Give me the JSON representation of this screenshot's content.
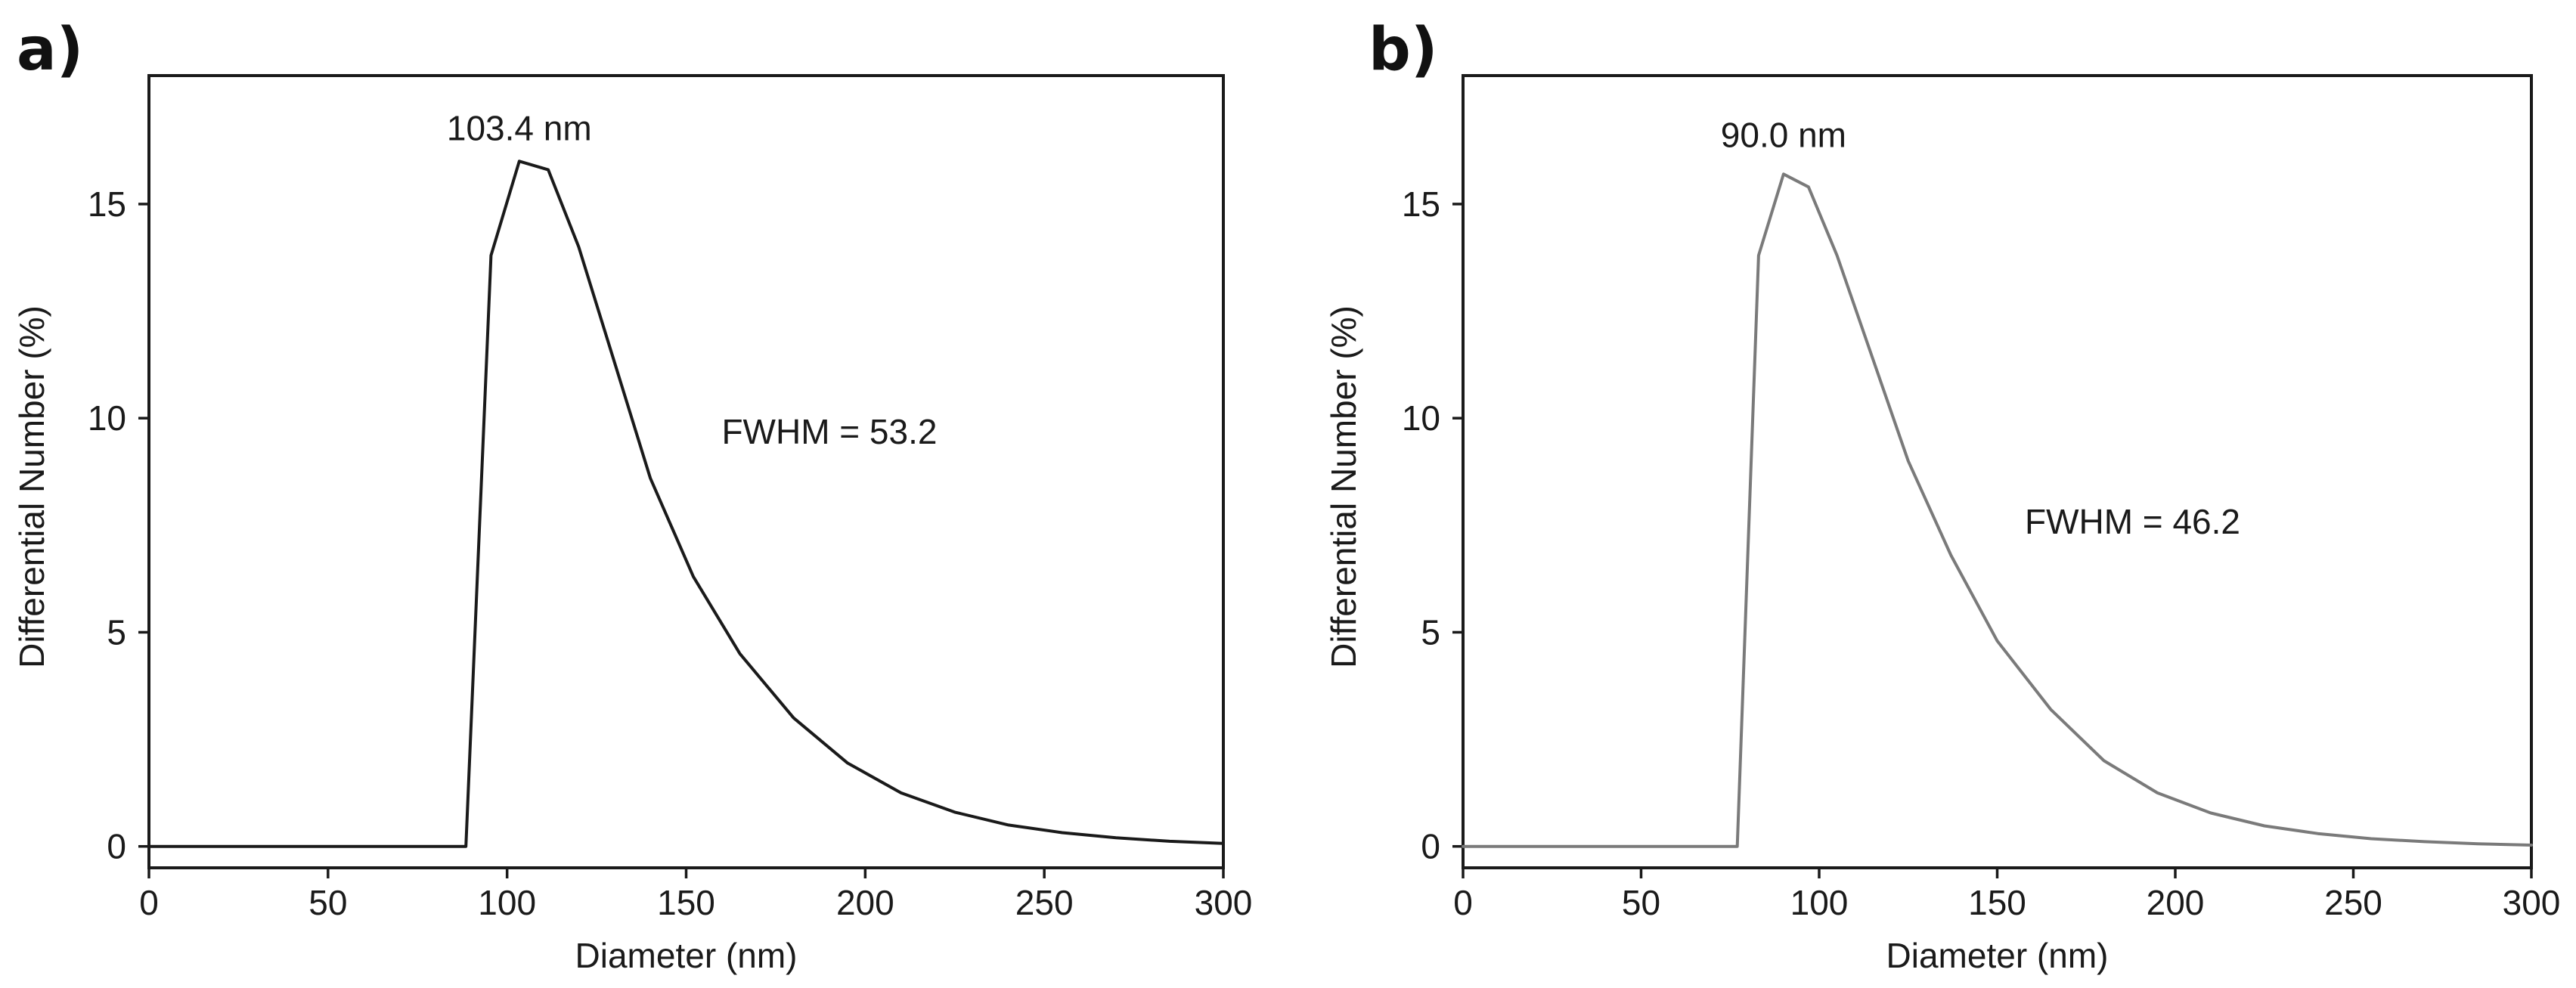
{
  "chart_data": [
    {
      "type": "line",
      "panel_label": "a)",
      "xlabel": "Diameter (nm)",
      "ylabel": "Differential Number (%)",
      "xlim": [
        0,
        300
      ],
      "ylim": [
        -0.5,
        18
      ],
      "xticks": [
        0,
        50,
        100,
        150,
        200,
        250,
        300
      ],
      "yticks": [
        0,
        5,
        10,
        15
      ],
      "grid": false,
      "line_color": "#1a1a1a",
      "series": [
        {
          "x": [
            0,
            88.5,
            95.5,
            103.4,
            111.5,
            120,
            130,
            140,
            152,
            165,
            180,
            195,
            210,
            225,
            240,
            255,
            270,
            285,
            300
          ],
          "values": [
            0,
            0,
            13.8,
            16.0,
            15.8,
            14.0,
            11.3,
            8.6,
            6.3,
            4.5,
            3.0,
            1.95,
            1.25,
            0.8,
            0.5,
            0.32,
            0.2,
            0.12,
            0.07
          ]
        }
      ],
      "annotations": [
        {
          "text": "103.4 nm",
          "x": 103.4,
          "y": 16.0
        },
        {
          "text": "FWHM = 53.2",
          "x": 190,
          "y": 9.4
        }
      ]
    },
    {
      "type": "line",
      "panel_label": "b)",
      "xlabel": "Diameter (nm)",
      "ylabel": "Differential Number (%)",
      "xlim": [
        0,
        300
      ],
      "ylim": [
        -0.5,
        18
      ],
      "xticks": [
        0,
        50,
        100,
        150,
        200,
        250,
        300
      ],
      "yticks": [
        0,
        5,
        10,
        15
      ],
      "grid": false,
      "line_color": "#7a7a7a",
      "series": [
        {
          "x": [
            0,
            77,
            83,
            90.0,
            97,
            105,
            115,
            125,
            137,
            150,
            165,
            180,
            195,
            210,
            225,
            240,
            255,
            270,
            285,
            300
          ],
          "values": [
            0,
            0,
            13.8,
            15.7,
            15.4,
            13.8,
            11.4,
            9.0,
            6.8,
            4.8,
            3.2,
            2.0,
            1.25,
            0.78,
            0.48,
            0.3,
            0.18,
            0.11,
            0.06,
            0.03
          ]
        }
      ],
      "annotations": [
        {
          "text": "90.0 nm",
          "x": 90.0,
          "y": 15.7
        },
        {
          "text": "FWHM = 46.2",
          "x": 188,
          "y": 7.3
        }
      ]
    }
  ]
}
